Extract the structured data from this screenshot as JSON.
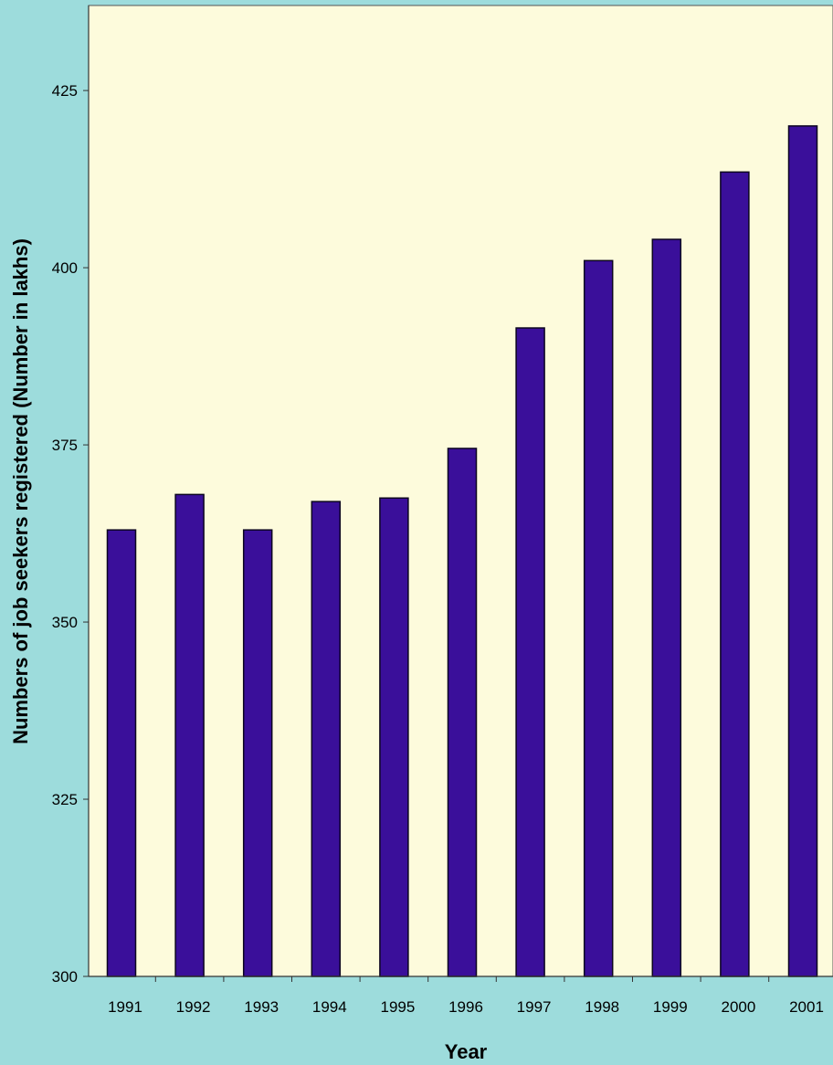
{
  "chart_data": {
    "type": "bar",
    "title": "",
    "xlabel": "Year",
    "ylabel": "Numbers of job seekers registered (Number in lakhs)",
    "categories": [
      "1991",
      "1992",
      "1993",
      "1994",
      "1995",
      "1996",
      "1997",
      "1998",
      "1999",
      "2000",
      "2001"
    ],
    "values": [
      363,
      368,
      363,
      367,
      367.5,
      374.5,
      391.5,
      401,
      404,
      413.5,
      420
    ],
    "ylim": [
      300,
      437
    ],
    "yticks": [
      300,
      325,
      350,
      375,
      400,
      425
    ],
    "ytick_labels": [
      "300",
      "325",
      "350",
      "375",
      "400",
      "425"
    ],
    "grid": false,
    "legend": "none",
    "colors": {
      "bar": "#3a0f9a",
      "bar_edge": "#0c0520",
      "plot_background": "#fdfbdc",
      "page_background": "#9ddcdc",
      "axis": "#333333",
      "text": "#000000"
    }
  }
}
